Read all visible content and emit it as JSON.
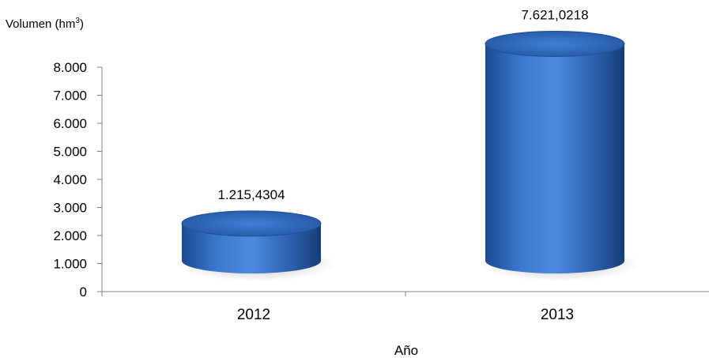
{
  "chart_data": {
    "type": "bar",
    "style": "3d-cylinder",
    "title": "",
    "ylabel": "Volumen (hm",
    "ylabel_superscript": "3",
    "ylabel_suffix": ")",
    "xlabel": "Año",
    "categories": [
      "2012",
      "2013"
    ],
    "values": [
      1215.4304,
      7621.0218
    ],
    "data_labels": [
      "1.215,4304",
      "7.621,0218"
    ],
    "ylim": [
      0,
      8000
    ],
    "yticks": [
      0,
      1000,
      2000,
      3000,
      4000,
      5000,
      6000,
      7000,
      8000
    ],
    "ytick_labels": [
      "0",
      "1.000",
      "2.000",
      "3.000",
      "4.000",
      "5.000",
      "6.000",
      "7.000",
      "8.000"
    ],
    "grid": false,
    "legend": "none",
    "bar_color": "#2a5ea8"
  }
}
